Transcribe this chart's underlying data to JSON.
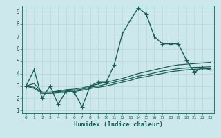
{
  "xlabel": "Humidex (Indice chaleur)",
  "bg_color": "#cce8ec",
  "grid_color": "#b8d8dc",
  "line_color": "#1a5e52",
  "xlim": [
    -0.5,
    23.5
  ],
  "ylim": [
    0.8,
    9.5
  ],
  "xticks": [
    0,
    1,
    2,
    3,
    4,
    5,
    6,
    7,
    8,
    9,
    10,
    11,
    12,
    13,
    14,
    15,
    16,
    17,
    18,
    19,
    20,
    21,
    22,
    23
  ],
  "yticks": [
    1,
    2,
    3,
    4,
    5,
    6,
    7,
    8,
    9
  ],
  "series": [
    {
      "x": [
        0,
        1,
        2,
        3,
        4,
        5,
        6,
        7,
        8,
        9,
        10,
        11,
        12,
        13,
        14,
        15,
        16,
        17,
        18,
        19,
        20,
        21,
        22,
        23
      ],
      "y": [
        3.0,
        4.3,
        2.0,
        3.0,
        1.5,
        2.6,
        2.5,
        1.3,
        3.0,
        3.3,
        3.3,
        4.7,
        7.2,
        8.3,
        9.3,
        8.8,
        7.0,
        6.4,
        6.4,
        6.4,
        5.1,
        4.1,
        4.5,
        4.3
      ],
      "marker": true,
      "lw": 1.0
    },
    {
      "x": [
        0,
        1,
        2,
        3,
        4,
        5,
        6,
        7,
        8,
        9,
        10,
        11,
        12,
        13,
        14,
        15,
        16,
        17,
        18,
        19,
        20,
        21,
        22,
        23
      ],
      "y": [
        3.0,
        3.2,
        2.5,
        2.5,
        2.6,
        2.7,
        2.75,
        2.85,
        3.0,
        3.15,
        3.3,
        3.45,
        3.6,
        3.8,
        4.0,
        4.15,
        4.3,
        4.45,
        4.6,
        4.7,
        4.75,
        4.8,
        4.85,
        4.9
      ],
      "marker": false,
      "lw": 0.9
    },
    {
      "x": [
        0,
        1,
        2,
        3,
        4,
        5,
        6,
        7,
        8,
        9,
        10,
        11,
        12,
        13,
        14,
        15,
        16,
        17,
        18,
        19,
        20,
        21,
        22,
        23
      ],
      "y": [
        3.0,
        2.9,
        2.5,
        2.5,
        2.55,
        2.6,
        2.65,
        2.75,
        2.9,
        3.0,
        3.15,
        3.3,
        3.45,
        3.6,
        3.8,
        3.9,
        4.05,
        4.2,
        4.3,
        4.4,
        4.45,
        4.5,
        4.52,
        4.55
      ],
      "marker": false,
      "lw": 0.9
    },
    {
      "x": [
        0,
        1,
        2,
        3,
        4,
        5,
        6,
        7,
        8,
        9,
        10,
        11,
        12,
        13,
        14,
        15,
        16,
        17,
        18,
        19,
        20,
        21,
        22,
        23
      ],
      "y": [
        3.0,
        2.8,
        2.4,
        2.4,
        2.45,
        2.5,
        2.55,
        2.65,
        2.8,
        2.9,
        3.0,
        3.15,
        3.3,
        3.45,
        3.65,
        3.75,
        3.9,
        4.0,
        4.15,
        4.22,
        4.3,
        4.35,
        4.38,
        4.4
      ],
      "marker": false,
      "lw": 0.9
    }
  ]
}
